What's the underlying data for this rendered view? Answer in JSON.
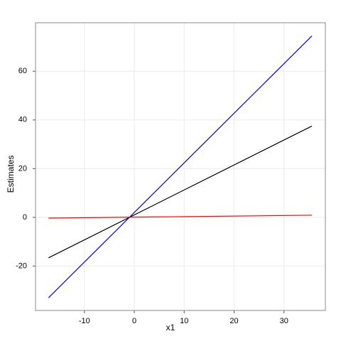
{
  "chart_data": {
    "type": "line",
    "x_label": "x1",
    "y_label": "Estimates",
    "x": [
      -17.2,
      35.6
    ],
    "series": [
      {
        "color": "#0000ff",
        "values": [
          -33,
          74.5
        ]
      },
      {
        "color": "#000000",
        "values": [
          -16.6,
          37.5
        ]
      },
      {
        "color": "#ff0000",
        "values": [
          -0.3,
          0.9
        ]
      }
    ],
    "xlim": [
      -19.8,
      38.3
    ],
    "ylim": [
      -38.2,
      79.9
    ],
    "xticks": [
      -10,
      0,
      10,
      20,
      30
    ],
    "yticks": [
      -20,
      0,
      20,
      40,
      60
    ],
    "grid": true
  }
}
